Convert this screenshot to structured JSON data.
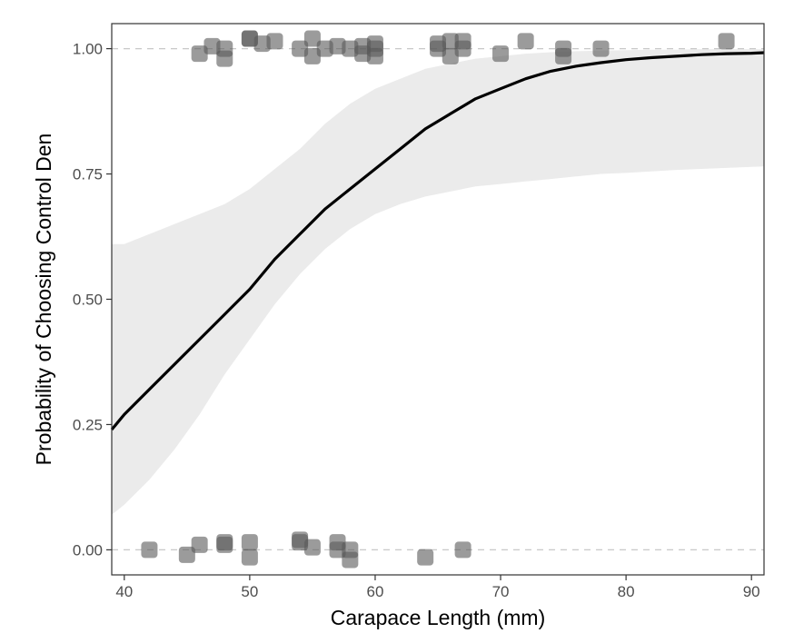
{
  "chart_data": {
    "type": "scatter",
    "title": "",
    "xlabel": "Carapace Length (mm)",
    "ylabel": "Probability of Choosing Control Den",
    "xlim": [
      39,
      91
    ],
    "ylim": [
      -0.05,
      1.05
    ],
    "x_ticks": [
      40,
      50,
      60,
      70,
      80,
      90
    ],
    "x_tick_labels": [
      "40",
      "50",
      "60",
      "70",
      "80",
      "90"
    ],
    "y_ticks": [
      0,
      0.25,
      0.5,
      0.75,
      1.0
    ],
    "y_tick_labels": [
      "0.00",
      "0.25",
      "0.50",
      "0.75",
      "1.00"
    ],
    "reference_lines_y": [
      0,
      1
    ],
    "grid": false,
    "legend": "none",
    "fit_curve": {
      "x": [
        39,
        40,
        42,
        44,
        46,
        48,
        50,
        52,
        54,
        56,
        58,
        60,
        62,
        64,
        66,
        68,
        70,
        72,
        74,
        76,
        78,
        80,
        82,
        84,
        86,
        88,
        90,
        91
      ],
      "y": [
        0.24,
        0.27,
        0.32,
        0.37,
        0.42,
        0.47,
        0.52,
        0.58,
        0.63,
        0.68,
        0.72,
        0.76,
        0.8,
        0.84,
        0.87,
        0.9,
        0.92,
        0.94,
        0.955,
        0.965,
        0.972,
        0.978,
        0.982,
        0.985,
        0.988,
        0.99,
        0.991,
        0.992
      ],
      "ci_lower": [
        0.07,
        0.09,
        0.14,
        0.2,
        0.27,
        0.35,
        0.42,
        0.49,
        0.55,
        0.6,
        0.64,
        0.67,
        0.69,
        0.705,
        0.715,
        0.725,
        0.73,
        0.735,
        0.74,
        0.745,
        0.75,
        0.752,
        0.755,
        0.758,
        0.76,
        0.762,
        0.764,
        0.765
      ],
      "ci_upper": [
        0.61,
        0.61,
        0.63,
        0.65,
        0.67,
        0.69,
        0.72,
        0.76,
        0.8,
        0.85,
        0.89,
        0.92,
        0.94,
        0.96,
        0.97,
        0.98,
        0.985,
        0.99,
        0.993,
        0.995,
        0.996,
        0.997,
        0.998,
        0.998,
        0.999,
        0.999,
        0.999,
        0.999
      ],
      "color": "#000000",
      "ci_color": "#ebebeb"
    },
    "points": [
      {
        "x": 46,
        "y": 0.99
      },
      {
        "x": 47,
        "y": 1.005
      },
      {
        "x": 48,
        "y": 1.0
      },
      {
        "x": 48,
        "y": 0.98
      },
      {
        "x": 50,
        "y": 1.02
      },
      {
        "x": 50,
        "y": 1.02
      },
      {
        "x": 51,
        "y": 1.01
      },
      {
        "x": 52,
        "y": 1.015
      },
      {
        "x": 54,
        "y": 1.0
      },
      {
        "x": 55,
        "y": 1.02
      },
      {
        "x": 55,
        "y": 0.985
      },
      {
        "x": 56,
        "y": 1.0
      },
      {
        "x": 57,
        "y": 1.005
      },
      {
        "x": 58,
        "y": 1.0
      },
      {
        "x": 59,
        "y": 1.005
      },
      {
        "x": 59,
        "y": 0.99
      },
      {
        "x": 60,
        "y": 1.01
      },
      {
        "x": 60,
        "y": 1.0
      },
      {
        "x": 60,
        "y": 0.985
      },
      {
        "x": 65,
        "y": 1.01
      },
      {
        "x": 65,
        "y": 1.0
      },
      {
        "x": 66,
        "y": 1.015
      },
      {
        "x": 66,
        "y": 0.985
      },
      {
        "x": 67,
        "y": 1.015
      },
      {
        "x": 67,
        "y": 1.0
      },
      {
        "x": 70,
        "y": 0.99
      },
      {
        "x": 72,
        "y": 1.015
      },
      {
        "x": 75,
        "y": 1.0
      },
      {
        "x": 75,
        "y": 0.985
      },
      {
        "x": 78,
        "y": 1.0
      },
      {
        "x": 88,
        "y": 1.015
      },
      {
        "x": 42,
        "y": 0.0
      },
      {
        "x": 45,
        "y": -0.01
      },
      {
        "x": 46,
        "y": 0.01
      },
      {
        "x": 48,
        "y": 0.015
      },
      {
        "x": 48,
        "y": 0.01
      },
      {
        "x": 50,
        "y": 0.015
      },
      {
        "x": 50,
        "y": -0.015
      },
      {
        "x": 54,
        "y": 0.02
      },
      {
        "x": 54,
        "y": 0.015
      },
      {
        "x": 55,
        "y": 0.005
      },
      {
        "x": 57,
        "y": 0.015
      },
      {
        "x": 57,
        "y": 0.0
      },
      {
        "x": 58,
        "y": 0.0
      },
      {
        "x": 58,
        "y": -0.02
      },
      {
        "x": 64,
        "y": -0.015
      },
      {
        "x": 67,
        "y": 0.0
      }
    ],
    "point_color": "#595959",
    "point_opacity": 0.6
  }
}
